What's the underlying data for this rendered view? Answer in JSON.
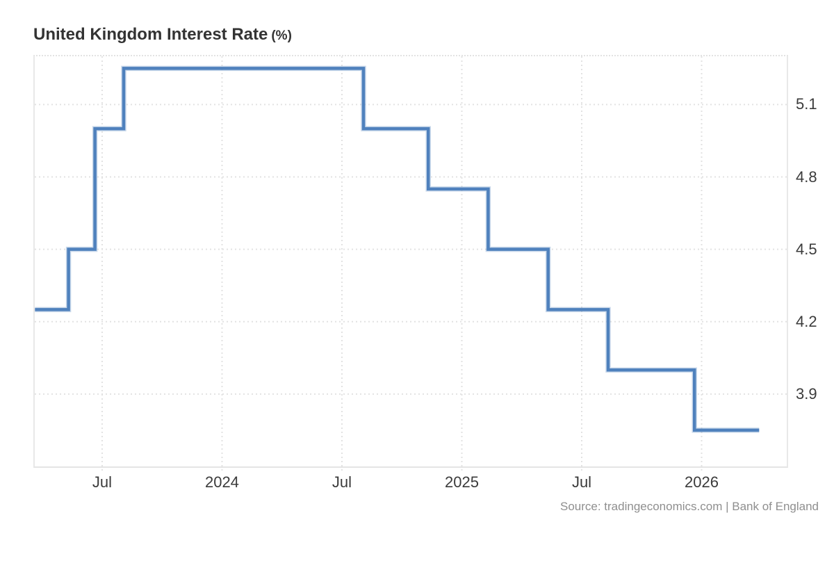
{
  "header": {
    "title": "United Kingdom Interest Rate",
    "unit": "(%)"
  },
  "footer": {
    "source": "Source: tradingeconomics.com | Bank of England"
  },
  "colors": {
    "line": "#4f81bd",
    "grid": "#e2e2e2",
    "border": "#e6e6e6",
    "axis_text": "#3b3b3b",
    "title_text": "#333333",
    "source_text": "#8f8f8f",
    "background": "#ffffff"
  },
  "chart_data": {
    "type": "line",
    "step": true,
    "title": "United Kingdom Interest Rate (%)",
    "unit": "%",
    "grid": "dotted",
    "legend": false,
    "y_axis_position": "right",
    "xlim": [
      2023.219,
      2026.355
    ],
    "ylim": [
      3.6,
      5.3
    ],
    "y_ticks": [
      {
        "label": "5.1",
        "value": 5.1
      },
      {
        "label": "4.8",
        "value": 4.8
      },
      {
        "label": "4.5",
        "value": 4.5
      },
      {
        "label": "4.2",
        "value": 4.2
      },
      {
        "label": "3.9",
        "value": 3.9
      }
    ],
    "x_ticks": [
      {
        "label": "Jul",
        "t": 2023.5
      },
      {
        "label": "2024",
        "t": 2024.0
      },
      {
        "label": "Jul",
        "t": 2024.5
      },
      {
        "label": "2025",
        "t": 2025.0
      },
      {
        "label": "Jul",
        "t": 2025.5
      },
      {
        "label": "2026",
        "t": 2026.0
      }
    ],
    "points": [
      {
        "date": "2023-03",
        "t": 2023.22,
        "value": 4.25
      },
      {
        "date": "2023-05",
        "t": 2023.36,
        "value": 4.5
      },
      {
        "date": "2023-06",
        "t": 2023.47,
        "value": 5.0
      },
      {
        "date": "2023-08",
        "t": 2023.59,
        "value": 5.25
      },
      {
        "date": "2024-08",
        "t": 2024.59,
        "value": 5.0
      },
      {
        "date": "2024-11",
        "t": 2024.86,
        "value": 4.75
      },
      {
        "date": "2025-02",
        "t": 2025.11,
        "value": 4.5
      },
      {
        "date": "2025-05",
        "t": 2025.36,
        "value": 4.25
      },
      {
        "date": "2025-08",
        "t": 2025.61,
        "value": 4.0
      },
      {
        "date": "2025-12",
        "t": 2025.97,
        "value": 3.75
      }
    ],
    "end_t": 2026.24
  }
}
